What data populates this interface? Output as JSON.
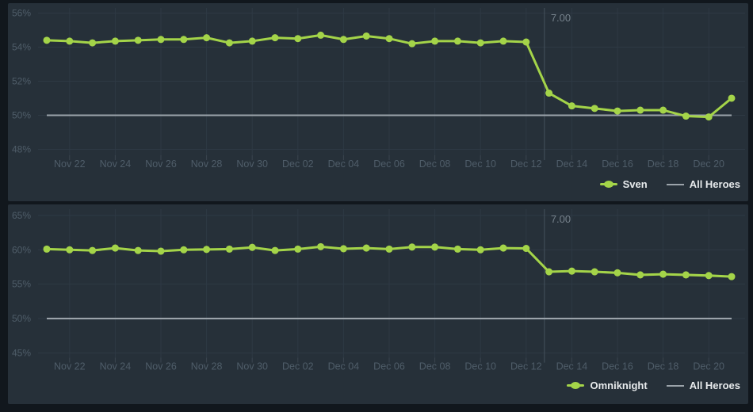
{
  "colors": {
    "page_bg": "#11171d",
    "panel_bg": "#263039",
    "gridline": "#2e3944",
    "tick": "#3a454f",
    "annotation_line": "#46525d",
    "axis_label": "#4f5d69",
    "annotation_label": "#76828c",
    "legend_text": "#e8ebed",
    "hero_green": "#a4d449",
    "all_heroes_gray": "#9ba3aa"
  },
  "chart_data": [
    {
      "type": "line",
      "title": "",
      "categories": [
        "Nov 21",
        "Nov 22",
        "Nov 23",
        "Nov 24",
        "Nov 25",
        "Nov 26",
        "Nov 27",
        "Nov 28",
        "Nov 29",
        "Nov 30",
        "Dec 01",
        "Dec 02",
        "Dec 03",
        "Dec 04",
        "Dec 05",
        "Dec 06",
        "Dec 07",
        "Dec 08",
        "Dec 09",
        "Dec 10",
        "Dec 11",
        "Dec 12",
        "Dec 13",
        "Dec 14",
        "Dec 15",
        "Dec 16",
        "Dec 17",
        "Dec 18",
        "Dec 19",
        "Dec 20",
        "Dec 21"
      ],
      "series": [
        {
          "name": "Sven",
          "color": "#a4d449",
          "values": [
            54.4,
            54.35,
            54.25,
            54.35,
            54.4,
            54.45,
            54.45,
            54.55,
            54.25,
            54.35,
            54.55,
            54.5,
            54.7,
            54.45,
            54.65,
            54.5,
            54.2,
            54.35,
            54.35,
            54.25,
            54.35,
            54.3,
            51.3,
            50.55,
            50.4,
            50.25,
            50.3,
            50.3,
            49.95,
            49.9,
            51.0
          ]
        },
        {
          "name": "All Heroes",
          "color": "#9ba3aa",
          "value": 50
        }
      ],
      "ylim": [
        47.65,
        56.3
      ],
      "yticks": [
        {
          "value": 48,
          "label": "48%"
        },
        {
          "value": 50,
          "label": "50%"
        },
        {
          "value": 52,
          "label": "52%"
        },
        {
          "value": 54,
          "label": "54%"
        },
        {
          "value": 56,
          "label": "56%"
        }
      ],
      "xticks": [
        {
          "index": 1,
          "label": "Nov 22"
        },
        {
          "index": 3,
          "label": "Nov 24"
        },
        {
          "index": 5,
          "label": "Nov 26"
        },
        {
          "index": 7,
          "label": "Nov 28"
        },
        {
          "index": 9,
          "label": "Nov 30"
        },
        {
          "index": 11,
          "label": "Dec 02"
        },
        {
          "index": 13,
          "label": "Dec 04"
        },
        {
          "index": 15,
          "label": "Dec 06"
        },
        {
          "index": 17,
          "label": "Dec 08"
        },
        {
          "index": 19,
          "label": "Dec 10"
        },
        {
          "index": 21,
          "label": "Dec 12"
        },
        {
          "index": 23,
          "label": "Dec 14"
        },
        {
          "index": 25,
          "label": "Dec 16"
        },
        {
          "index": 27,
          "label": "Dec 18"
        },
        {
          "index": 29,
          "label": "Dec 20"
        }
      ],
      "annotation": {
        "label": "7.00",
        "x_index": 21.8
      },
      "legend_position": "bottom-right",
      "grid": true
    },
    {
      "type": "line",
      "title": "",
      "categories": [
        "Nov 21",
        "Nov 22",
        "Nov 23",
        "Nov 24",
        "Nov 25",
        "Nov 26",
        "Nov 27",
        "Nov 28",
        "Nov 29",
        "Nov 30",
        "Dec 01",
        "Dec 02",
        "Dec 03",
        "Dec 04",
        "Dec 05",
        "Dec 06",
        "Dec 07",
        "Dec 08",
        "Dec 09",
        "Dec 10",
        "Dec 11",
        "Dec 12",
        "Dec 13",
        "Dec 14",
        "Dec 15",
        "Dec 16",
        "Dec 17",
        "Dec 18",
        "Dec 19",
        "Dec 20",
        "Dec 21"
      ],
      "series": [
        {
          "name": "Omniknight",
          "color": "#a4d449",
          "values": [
            60.1,
            60.0,
            59.9,
            60.25,
            59.9,
            59.8,
            60.0,
            60.05,
            60.1,
            60.35,
            59.9,
            60.1,
            60.45,
            60.15,
            60.25,
            60.1,
            60.4,
            60.4,
            60.1,
            60.0,
            60.25,
            60.2,
            56.8,
            56.9,
            56.8,
            56.65,
            56.35,
            56.45,
            56.35,
            56.25,
            56.1
          ]
        },
        {
          "name": "All Heroes",
          "color": "#9ba3aa",
          "value": 50
        }
      ],
      "ylim": [
        44.3,
        65.9
      ],
      "yticks": [
        {
          "value": 45,
          "label": "45%"
        },
        {
          "value": 50,
          "label": "50%"
        },
        {
          "value": 55,
          "label": "55%"
        },
        {
          "value": 60,
          "label": "60%"
        },
        {
          "value": 65,
          "label": "65%"
        }
      ],
      "xticks": [
        {
          "index": 1,
          "label": "Nov 22"
        },
        {
          "index": 3,
          "label": "Nov 24"
        },
        {
          "index": 5,
          "label": "Nov 26"
        },
        {
          "index": 7,
          "label": "Nov 28"
        },
        {
          "index": 9,
          "label": "Nov 30"
        },
        {
          "index": 11,
          "label": "Dec 02"
        },
        {
          "index": 13,
          "label": "Dec 04"
        },
        {
          "index": 15,
          "label": "Dec 06"
        },
        {
          "index": 17,
          "label": "Dec 08"
        },
        {
          "index": 19,
          "label": "Dec 10"
        },
        {
          "index": 21,
          "label": "Dec 12"
        },
        {
          "index": 23,
          "label": "Dec 14"
        },
        {
          "index": 25,
          "label": "Dec 16"
        },
        {
          "index": 27,
          "label": "Dec 18"
        },
        {
          "index": 29,
          "label": "Dec 20"
        }
      ],
      "annotation": {
        "label": "7.00",
        "x_index": 21.8
      },
      "legend_position": "bottom-right",
      "grid": true
    }
  ]
}
